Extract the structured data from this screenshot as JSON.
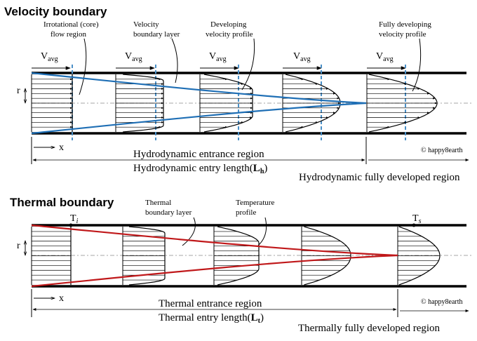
{
  "velocity": {
    "title": "Velocity boundary",
    "irrotational_line1": "Irrotational (core)",
    "irrotational_line2": "flow region",
    "bl_line1": "Velocity",
    "bl_line2": "boundary layer",
    "dev_line1": "Developing",
    "dev_line2": "velocity profile",
    "full_line1": "Fully developing",
    "full_line2": "velocity profile",
    "v_main": "V",
    "v_sub": "avg",
    "r": "r",
    "x": "x",
    "entrance_region": "Hydrodynamic entrance region",
    "entry_length_main": "Hydrodynamic entry length(",
    "entry_length_sym": "L",
    "entry_length_sub": "h",
    "entry_length_close": ")",
    "fully_developed": "Hydrodynamic fully developed region",
    "copyright": "© happy8earth"
  },
  "thermal": {
    "title": "Thermal boundary",
    "bl_line1": "Thermal",
    "bl_line2": "boundary layer",
    "temp_line1": "Temperature",
    "temp_line2": "profile",
    "ti_main": "T",
    "ti_sub": "i",
    "ts_main": "T",
    "ts_sub": "s",
    "r": "r",
    "x": "x",
    "entrance_region": "Thermal entrance region",
    "entry_length_main": "Thermal entry length(",
    "entry_length_sym": "L",
    "entry_length_sub": "t",
    "entry_length_close": ")",
    "fully_developed": "Thermally fully developed region",
    "copyright": "© happy8earth"
  },
  "colors": {
    "velocity_boundary": "#1f6fb5",
    "velocity_dash": "#4a90c8",
    "thermal_boundary": "#c0181a"
  }
}
